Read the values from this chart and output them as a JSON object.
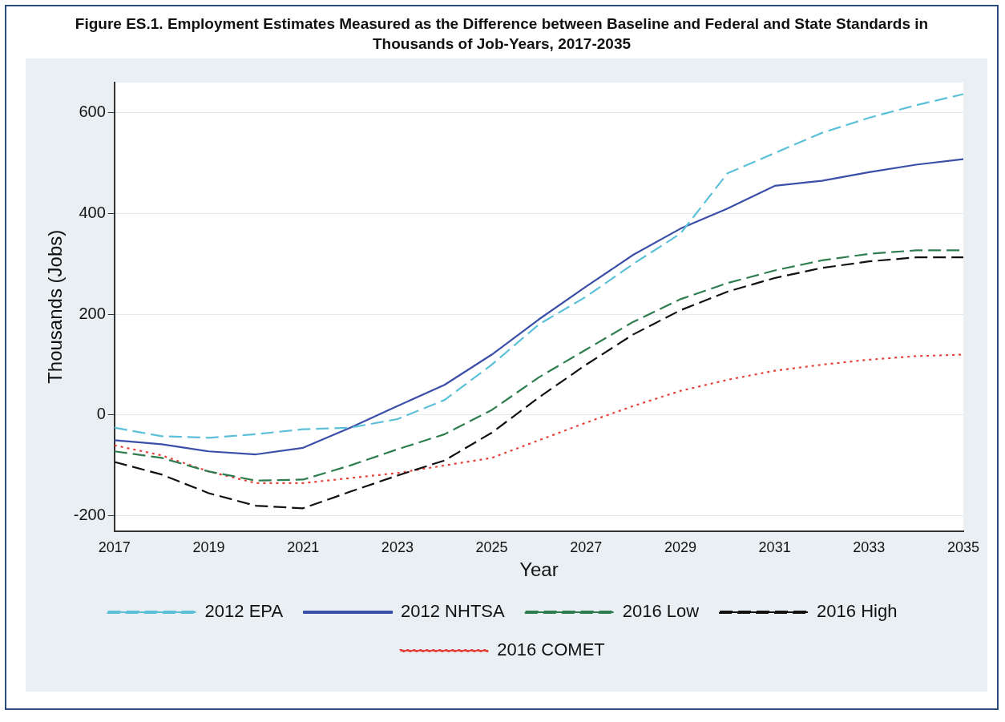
{
  "chart_data": {
    "type": "line",
    "title": "Figure ES.1. Employment Estimates Measured as the Difference between Baseline and Federal and State Standards in Thousands of Job-Years, 2017-2035",
    "xlabel": "Year",
    "ylabel": "Thousands (Jobs)",
    "x": [
      2017,
      2018,
      2019,
      2020,
      2021,
      2022,
      2023,
      2024,
      2025,
      2026,
      2027,
      2028,
      2029,
      2030,
      2031,
      2032,
      2033,
      2034,
      2035
    ],
    "xlim": [
      2017,
      2035
    ],
    "xticks": [
      2017,
      2019,
      2021,
      2023,
      2025,
      2027,
      2029,
      2031,
      2033,
      2035
    ],
    "ylim": [
      -230,
      660
    ],
    "yticks": [
      -200,
      0,
      200,
      400,
      600
    ],
    "grid": "y",
    "legend": "bottom",
    "marker": "none",
    "series": [
      {
        "name": "2012 EPA",
        "color": "#5bc0d8",
        "line_style": "dashed",
        "values": [
          -25,
          -42,
          -45,
          -38,
          -28,
          -25,
          -8,
          30,
          100,
          180,
          235,
          300,
          360,
          480,
          520,
          560,
          590,
          615,
          637
        ]
      },
      {
        "name": "2012 NHTSA",
        "color": "#3a4fa8",
        "line_style": "solid",
        "values": [
          -50,
          -58,
          -72,
          -78,
          -65,
          -25,
          18,
          60,
          120,
          190,
          255,
          318,
          370,
          410,
          455,
          465,
          482,
          497,
          508
        ]
      },
      {
        "name": "2016 Low",
        "color": "#2e7d4f",
        "line_style": "dashed",
        "values": [
          -72,
          -85,
          -112,
          -130,
          -128,
          -100,
          -68,
          -38,
          10,
          75,
          130,
          185,
          230,
          262,
          287,
          307,
          320,
          327,
          327
        ]
      },
      {
        "name": "2016 High",
        "color": "#111111",
        "line_style": "dashed",
        "values": [
          -93,
          -118,
          -155,
          -180,
          -185,
          -152,
          -120,
          -90,
          -35,
          35,
          100,
          160,
          208,
          245,
          272,
          292,
          305,
          313,
          313
        ]
      },
      {
        "name": "2016 COMET",
        "color": "#e8413a",
        "line_style": "dotted",
        "values": [
          -60,
          -80,
          -112,
          -135,
          -135,
          -125,
          -115,
          -100,
          -85,
          -50,
          -15,
          18,
          48,
          70,
          88,
          100,
          110,
          117,
          120
        ]
      }
    ]
  }
}
